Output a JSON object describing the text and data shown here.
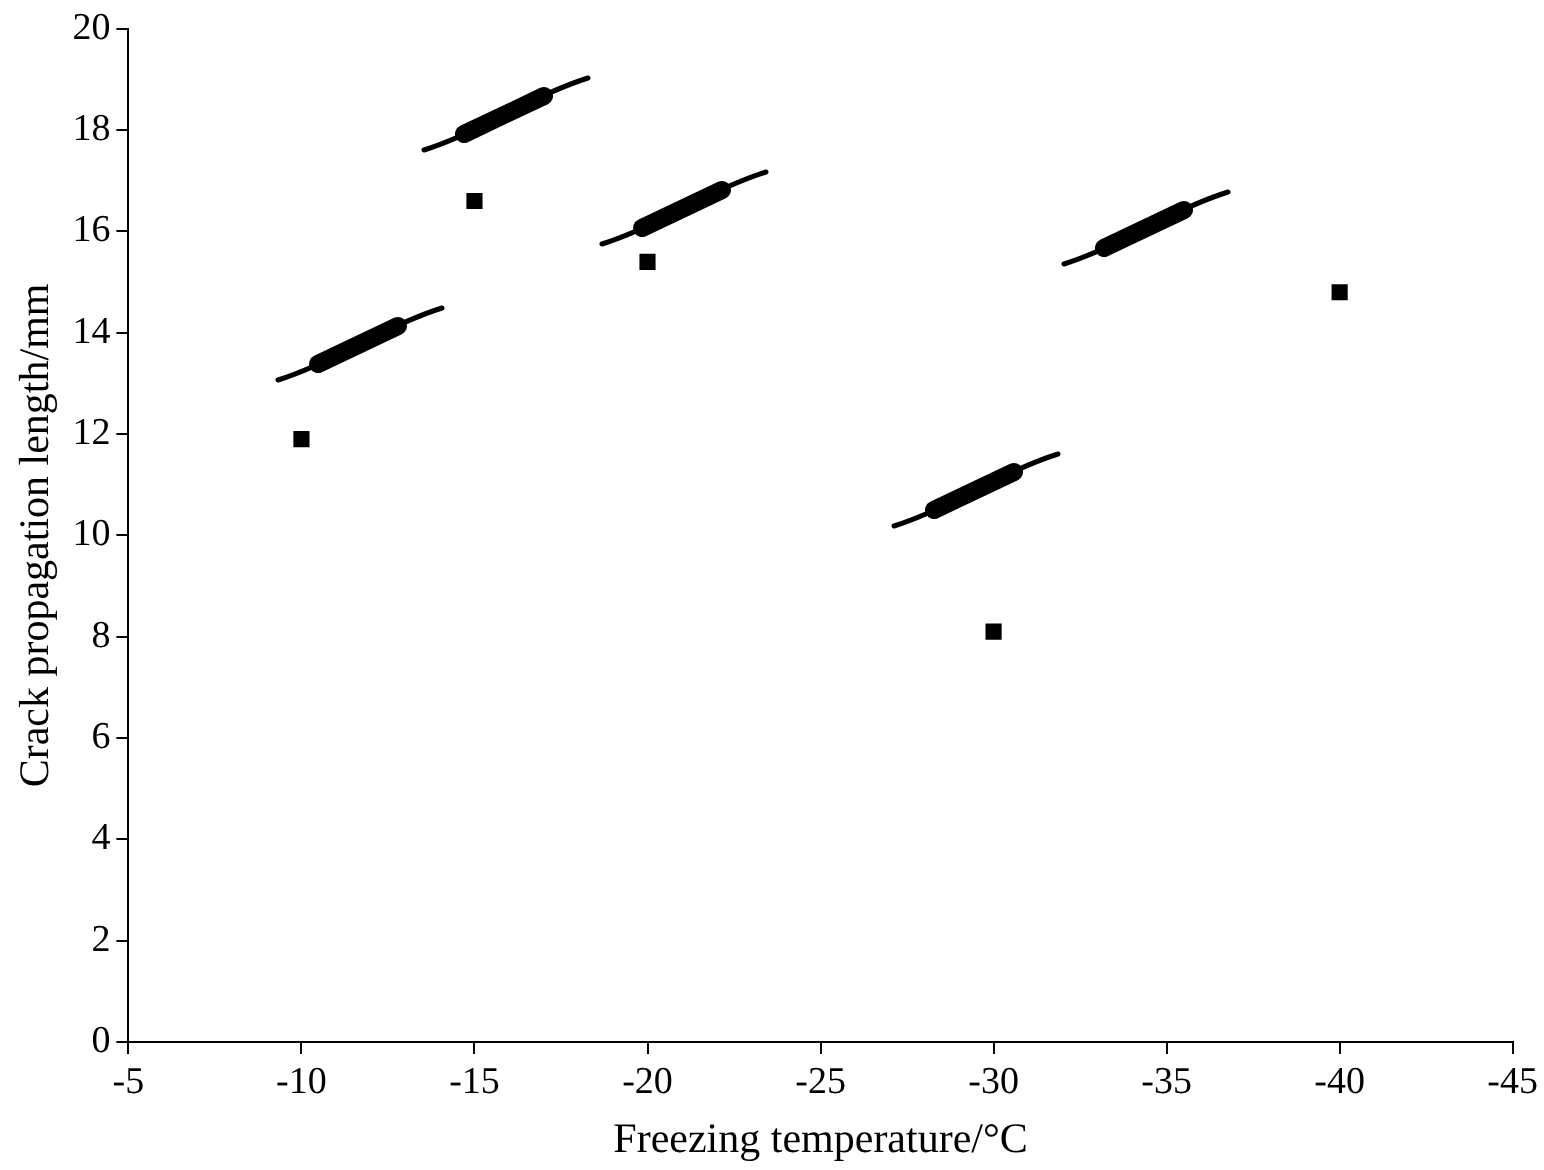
{
  "chart_data": {
    "type": "scatter",
    "xlabel": "Freezing temperature/°C",
    "ylabel": "Crack propagation length/mm",
    "x": [
      -10,
      -15,
      -20,
      -30,
      -40
    ],
    "series": [
      {
        "color": "#000000",
        "values": [
          11.9,
          16.6,
          15.4,
          8.1,
          14.8
        ]
      }
    ],
    "xlim": [
      -5,
      -45
    ],
    "xticks": [
      -5,
      -10,
      -15,
      -20,
      -25,
      -30,
      -35,
      -40,
      -45
    ],
    "ylim": [
      0,
      20
    ],
    "yticks": [
      0,
      2,
      4,
      6,
      8,
      10,
      12,
      14,
      16,
      18,
      20
    ],
    "grid": false,
    "legend": false,
    "marker": "square"
  }
}
